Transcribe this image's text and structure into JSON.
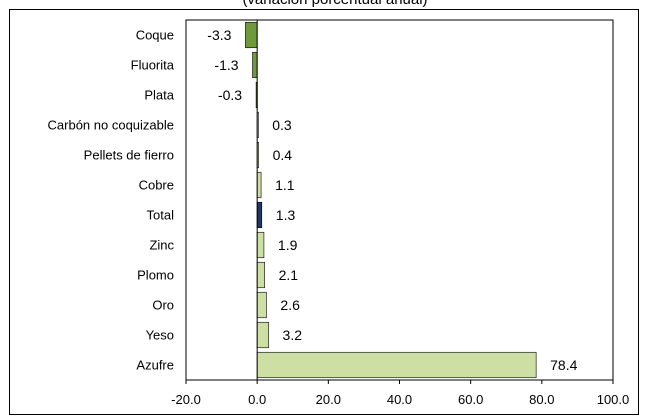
{
  "chart_data": {
    "type": "bar",
    "orientation": "horizontal",
    "title": "(variación porcentual anual)",
    "categories": [
      "Coque",
      "Fluorita",
      "Plata",
      "Carbón no coquizable",
      "Pellets de fierro",
      "Cobre",
      "Total",
      "Zinc",
      "Plomo",
      "Oro",
      "Yeso",
      "Azufre"
    ],
    "values": [
      -3.3,
      -1.3,
      -0.3,
      0.3,
      0.4,
      1.1,
      1.3,
      1.9,
      2.1,
      2.6,
      3.2,
      78.4
    ],
    "value_labels": [
      "-3.3",
      "-1.3",
      "-0.3",
      "0.3",
      "0.4",
      "1.1",
      "1.3",
      "1.9",
      "2.1",
      "2.6",
      "3.2",
      "78.4"
    ],
    "xlim": [
      -20,
      100
    ],
    "xticks": [
      -20,
      0,
      20,
      40,
      60,
      80,
      100
    ],
    "xtick_labels": [
      "-20.0",
      "0.0",
      "20.0",
      "40.0",
      "60.0",
      "80.0",
      "100.0"
    ],
    "xlabel": "",
    "ylabel": "",
    "grid": false,
    "legend": "none",
    "colors": {
      "negative": "#6f9a3c",
      "positive": "#cddfa3",
      "total": "#1f3864",
      "bar_outline": "#000000"
    }
  }
}
